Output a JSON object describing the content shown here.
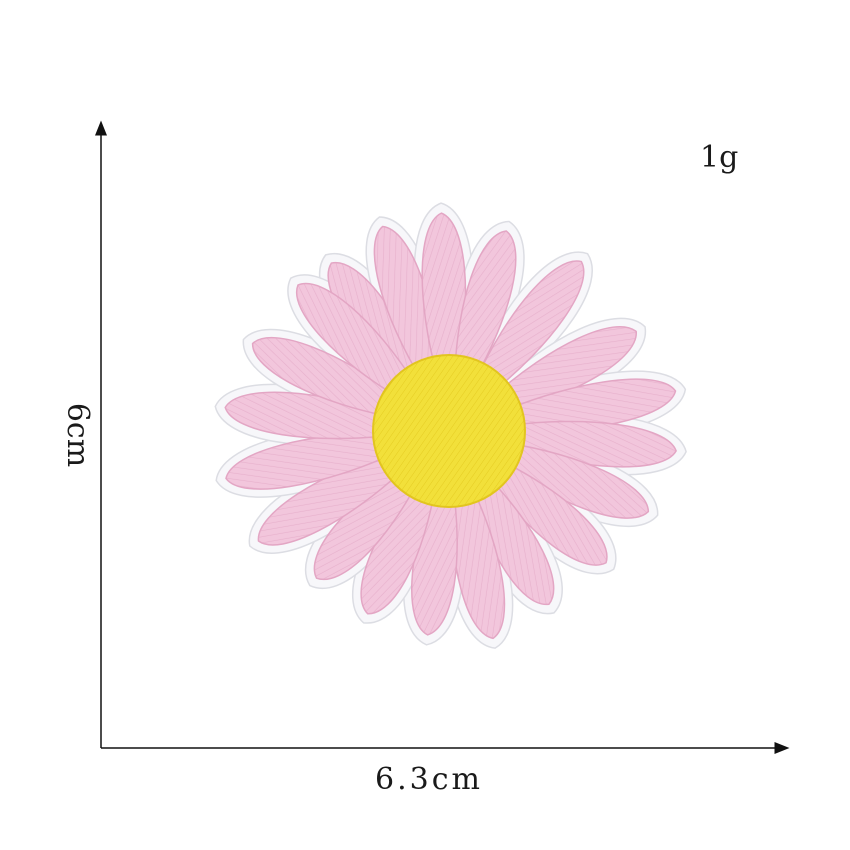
{
  "image": {
    "subject": "embroidered-daisy-patch",
    "labels": {
      "weight": "1g",
      "width": "6.3cm",
      "height": "6cm"
    },
    "colors": {
      "petal": "#f2c6dc",
      "petal_stitch": "#e3a6c4",
      "center": "#f2e03a",
      "center_shadow": "#e2c51f",
      "backing": "#f7f7fa",
      "backing_edge": "#dcdde3",
      "axis": "#111111",
      "background": "#ffffff"
    }
  }
}
